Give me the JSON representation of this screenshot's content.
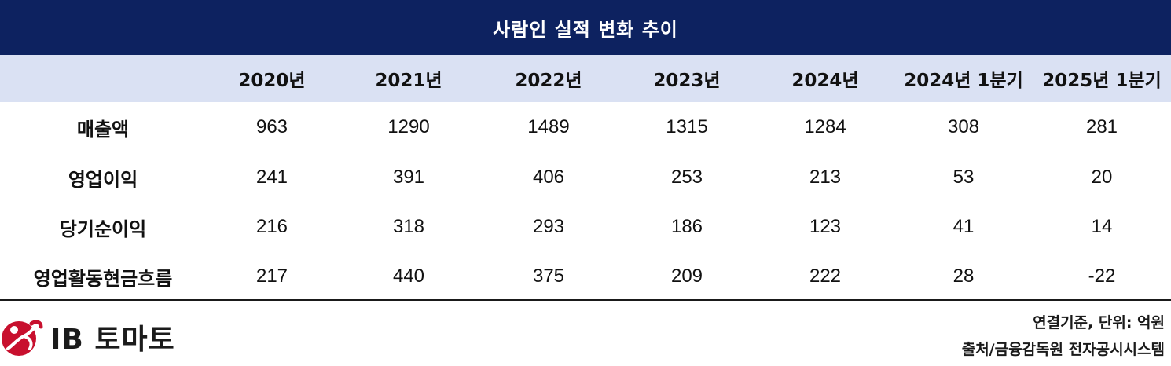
{
  "title": "사람인 실적 변화 추이",
  "columns": [
    "2020년",
    "2021년",
    "2022년",
    "2023년",
    "2024년",
    "2024년 1분기",
    "2025년 1분기"
  ],
  "rows": [
    {
      "label": "매출액",
      "values": [
        "963",
        "1290",
        "1489",
        "1315",
        "1284",
        "308",
        "281"
      ]
    },
    {
      "label": "영업이익",
      "values": [
        "241",
        "391",
        "406",
        "253",
        "213",
        "53",
        "20"
      ]
    },
    {
      "label": "당기순이익",
      "values": [
        "216",
        "318",
        "293",
        "186",
        "123",
        "41",
        "14"
      ]
    },
    {
      "label": "영업활동현금흐름",
      "values": [
        "217",
        "440",
        "375",
        "209",
        "222",
        "28",
        "-22"
      ]
    }
  ],
  "footer": {
    "logo_text": "IB 토마토",
    "note_basis": "연결기준, 단위: 억원",
    "note_source": "출처/금융감독원 전자공시시스템"
  },
  "colors": {
    "title_bg": "#0d2260",
    "header_bg": "#dae1f3",
    "logo_red": "#c8102e"
  }
}
